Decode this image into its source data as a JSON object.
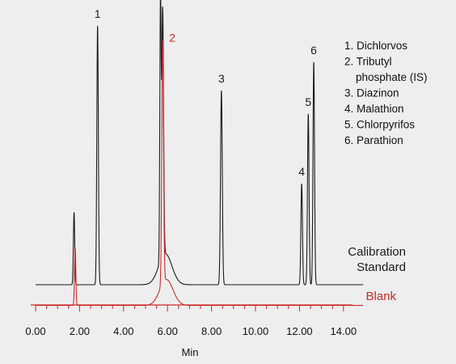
{
  "chart_data": {
    "type": "line",
    "xlabel": "Min",
    "ylabel": "",
    "xlim": [
      -0.2,
      15
    ],
    "x_ticks": [
      "0.00",
      "2.00",
      "4.00",
      "6.00",
      "8.00",
      "10.00",
      "12.00",
      "14.00"
    ],
    "grid": false,
    "series": [
      {
        "name": "Calibration Standard",
        "label_lines": [
          "Calibration",
          "Standard"
        ],
        "color": "#1a1a1a",
        "baseline": 0,
        "peaks": [
          {
            "x": 1.75,
            "height": 28,
            "width": 0.03
          },
          {
            "x": 2.82,
            "height": 100,
            "width": 0.035
          },
          {
            "x": 5.68,
            "height": 100,
            "width": 0.03
          },
          {
            "x": 5.78,
            "height": 96,
            "width": 0.04
          },
          {
            "x": 5.9,
            "height": 12,
            "width": 0.3
          },
          {
            "x": 8.45,
            "height": 75,
            "width": 0.04
          },
          {
            "x": 12.1,
            "height": 39,
            "width": 0.035
          },
          {
            "x": 12.4,
            "height": 66,
            "width": 0.035
          },
          {
            "x": 12.65,
            "height": 86,
            "width": 0.035
          }
        ]
      },
      {
        "name": "Blank",
        "label_lines": [
          "Blank"
        ],
        "color": "#cc2a2a",
        "baseline": -8,
        "peaks": [
          {
            "x": 1.8,
            "height": 22,
            "width": 0.03
          },
          {
            "x": 5.78,
            "height": 94,
            "width": 0.04
          },
          {
            "x": 5.95,
            "height": 10,
            "width": 0.3
          }
        ]
      }
    ],
    "peak_labels": [
      {
        "text": "1",
        "x": 2.82,
        "series": "Calibration Standard"
      },
      {
        "text": "2",
        "x": 5.68,
        "series": "Calibration Standard"
      },
      {
        "text": "3",
        "x": 8.45,
        "series": "Calibration Standard"
      },
      {
        "text": "4",
        "x": 12.1,
        "series": "Calibration Standard"
      },
      {
        "text": "5",
        "x": 12.4,
        "series": "Calibration Standard"
      },
      {
        "text": "6",
        "x": 12.65,
        "series": "Calibration Standard"
      },
      {
        "text": "2",
        "x": 5.78,
        "series": "Blank"
      }
    ],
    "peak_legend": [
      "1. Dichlorvos",
      "2. Tributyl",
      "phosphate (IS)",
      "3. Diazinon",
      "4. Malathion",
      "5. Chlorpyrifos",
      "6. Parathion"
    ],
    "axis_color": "#cc2a2a"
  }
}
